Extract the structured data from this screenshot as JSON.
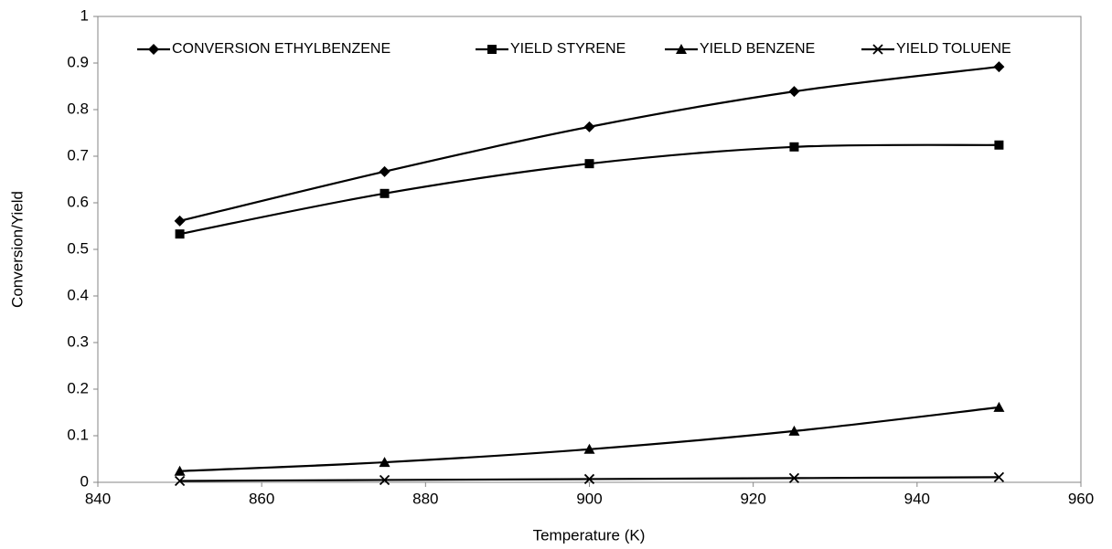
{
  "chart_data": {
    "type": "line",
    "x_label": "Temperature (K)",
    "y_label": "Conversion/Yield",
    "x": [
      850,
      875,
      900,
      925,
      950
    ],
    "series": [
      {
        "name": "CONVERSION ETHYLBENZENE",
        "color": "#000000",
        "marker": "diamond",
        "values": [
          0.561,
          0.667,
          0.763,
          0.839,
          0.892
        ]
      },
      {
        "name": "YIELD STYRENE",
        "color": "#000000",
        "marker": "square",
        "values": [
          0.533,
          0.62,
          0.684,
          0.72,
          0.724
        ]
      },
      {
        "name": "YIELD BENZENE",
        "color": "#000000",
        "marker": "triangle",
        "values": [
          0.024,
          0.043,
          0.071,
          0.11,
          0.161
        ]
      },
      {
        "name": "YIELD TOLUENE",
        "color": "#000000",
        "marker": "x",
        "values": [
          0.003,
          0.005,
          0.007,
          0.009,
          0.011
        ]
      }
    ],
    "xlim": [
      840,
      960
    ],
    "xticks": [
      840,
      860,
      880,
      900,
      920,
      940,
      960
    ],
    "ylim": [
      0,
      1
    ],
    "yticks": [
      0,
      0.1,
      0.2,
      0.3,
      0.4,
      0.5,
      0.6,
      0.7,
      0.8,
      0.9,
      1
    ],
    "legend": "top",
    "grid": false
  }
}
